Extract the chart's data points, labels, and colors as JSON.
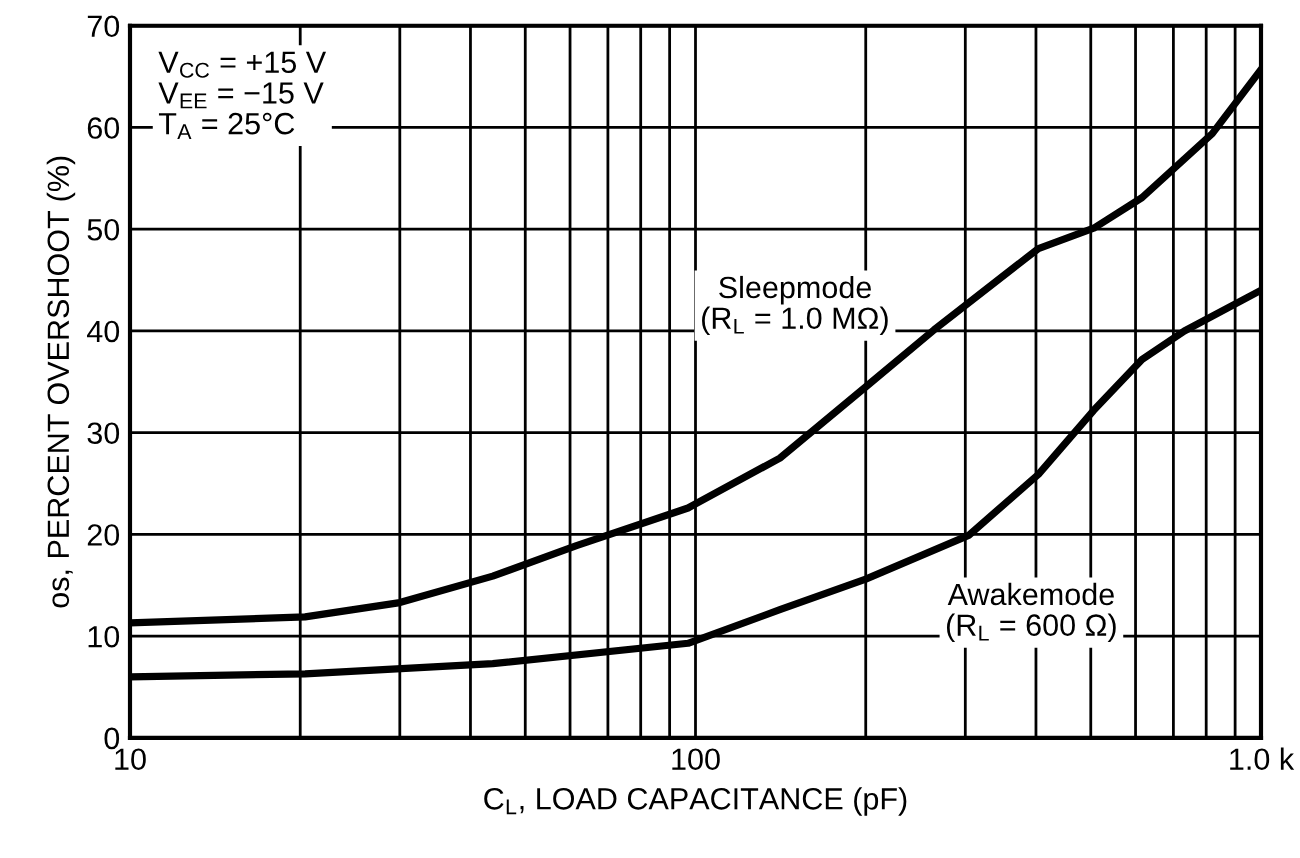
{
  "chart_data": {
    "type": "line",
    "xlabel": "C$_{L}$, LOAD CAPACITANCE (pF)",
    "ylabel": "os, PERCENT OVERSHOOT (%)",
    "log": "x",
    "grid": true,
    "line_style": "solid",
    "marker": "none",
    "xlim": [
      10,
      1000
    ],
    "ylim": [
      0,
      70
    ],
    "xticks": [
      10,
      {
        "value": 20,
        "label": null
      },
      {
        "value": 30,
        "label": null
      },
      {
        "value": 40,
        "label": null
      },
      {
        "value": 50,
        "label": null
      },
      {
        "value": 60,
        "label": null
      },
      {
        "value": 70,
        "label": null
      },
      {
        "value": 80,
        "label": null
      },
      {
        "value": 90,
        "label": null
      },
      100,
      {
        "value": 200,
        "label": null
      },
      {
        "value": 300,
        "label": null
      },
      {
        "value": 400,
        "label": null
      },
      {
        "value": 500,
        "label": null
      },
      {
        "value": 600,
        "label": null
      },
      {
        "value": 700,
        "label": null
      },
      {
        "value": 800,
        "label": null
      },
      {
        "value": 900,
        "label": null
      },
      {
        "value": 1000,
        "label": "1.0 k"
      }
    ],
    "yticks": [
      0,
      10,
      20,
      30,
      40,
      50,
      60,
      70
    ],
    "series": [
      {
        "color": "#000000",
        "x": [
          10,
          20.4,
          30,
          43.8,
          61.6,
          97,
          141,
          200,
          264,
          404,
          506,
          616,
          820,
          1000
        ],
        "values": [
          11.3,
          11.9,
          13.3,
          15.9,
          18.9,
          22.6,
          27.5,
          34.5,
          40.1,
          48.1,
          50.1,
          53.1,
          59.4,
          65.7
        ]
      },
      {
        "color": "#000000",
        "x": [
          10,
          20.4,
          43.8,
          97,
          141,
          200,
          304,
          404,
          506,
          616,
          732,
          1000
        ],
        "values": [
          6.0,
          6.3,
          7.3,
          9.3,
          12.6,
          15.6,
          19.9,
          25.9,
          32.2,
          37.2,
          40.0,
          44.0
        ]
      }
    ],
    "annotations": [
      "V$_{CC}$ = +15 V\nV$_{EE}$ = −15 V\nT$_{A}$ = 25°C",
      "Sleepmode\n(R$_{L}$ = 1.0 MΩ)",
      "Awakemode\n(R$_{L}$ = 600 Ω)"
    ]
  }
}
